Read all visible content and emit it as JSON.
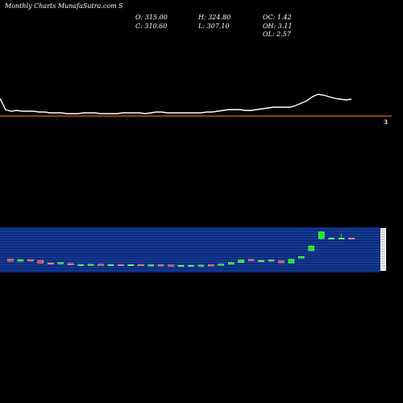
{
  "header": {
    "title": "Monthly Charts MunafaSutra.com",
    "symbol": "S"
  },
  "ohlc": {
    "open": "O: 315.00",
    "high": "H: 324.80",
    "oc": "OC: 1.42",
    "close": "C: 310.60",
    "low": "L: 307.10",
    "oh": "OH: 3.11",
    "ol": "OL: 2.57"
  },
  "price_axis": {
    "label": "3"
  },
  "colors": {
    "background": "#000000",
    "line": "#ffffff",
    "price_marker": "#e06020",
    "band": "#0a2a7a",
    "band_stripe": "#2a56b8",
    "bullish": "#00ff00",
    "bearish": "#ff3333",
    "neutral": "#ffffff"
  },
  "chart_data": [
    {
      "type": "line",
      "series": [
        {
          "values": [
            122,
            136,
            138,
            137,
            138,
            138,
            138,
            139,
            139,
            140,
            140,
            140,
            141,
            141,
            141,
            140,
            140,
            140,
            141,
            141,
            141,
            141,
            140,
            140,
            140,
            140,
            141,
            140,
            139,
            139,
            140,
            140,
            140,
            140,
            140,
            140,
            140,
            139,
            139,
            138,
            137,
            136,
            136,
            136,
            137,
            137,
            136,
            135,
            134,
            133,
            133,
            133,
            133,
            131,
            128,
            125,
            120,
            117,
            118,
            120,
            122,
            123,
            124,
            123
          ]
        }
      ],
      "price_level": 3
    },
    {
      "type": "candlestick",
      "candles": [
        {
          "o": 0.75,
          "c": 0.62,
          "h": 0.78,
          "l": 0.6
        },
        {
          "o": 0.62,
          "c": 0.72,
          "h": 0.74,
          "l": 0.56
        },
        {
          "o": 0.72,
          "c": 0.66,
          "h": 0.76,
          "l": 0.62
        },
        {
          "o": 0.66,
          "c": 0.5,
          "h": 0.68,
          "l": 0.48
        },
        {
          "o": 0.51,
          "c": 0.49,
          "h": 0.54,
          "l": 0.45
        },
        {
          "o": 0.49,
          "c": 0.53,
          "h": 0.56,
          "l": 0.46
        },
        {
          "o": 0.47,
          "c": 0.38,
          "h": 0.49,
          "l": 0.36
        },
        {
          "o": 0.38,
          "c": 0.41,
          "h": 0.43,
          "l": 0.36
        },
        {
          "o": 0.37,
          "c": 0.42,
          "h": 0.44,
          "l": 0.36
        },
        {
          "o": 0.42,
          "c": 0.39,
          "h": 0.46,
          "l": 0.37
        },
        {
          "o": 0.39,
          "c": 0.41,
          "h": 0.44,
          "l": 0.37
        },
        {
          "o": 0.41,
          "c": 0.37,
          "h": 0.42,
          "l": 0.36
        },
        {
          "o": 0.35,
          "c": 0.4,
          "h": 0.42,
          "l": 0.34
        },
        {
          "o": 0.41,
          "c": 0.36,
          "h": 0.42,
          "l": 0.35
        },
        {
          "o": 0.35,
          "c": 0.39,
          "h": 0.4,
          "l": 0.34
        },
        {
          "o": 0.39,
          "c": 0.38,
          "h": 0.41,
          "l": 0.37
        },
        {
          "o": 0.38,
          "c": 0.36,
          "h": 0.39,
          "l": 0.34
        },
        {
          "o": 0.34,
          "c": 0.36,
          "h": 0.38,
          "l": 0.33
        },
        {
          "o": 0.35,
          "c": 0.36,
          "h": 0.37,
          "l": 0.34
        },
        {
          "o": 0.36,
          "c": 0.37,
          "h": 0.38,
          "l": 0.35
        },
        {
          "o": 0.39,
          "c": 0.36,
          "h": 0.4,
          "l": 0.35
        },
        {
          "o": 0.36,
          "c": 0.43,
          "h": 0.5,
          "l": 0.35
        },
        {
          "o": 0.43,
          "c": 0.53,
          "h": 0.6,
          "l": 0.42
        },
        {
          "o": 0.53,
          "c": 0.7,
          "h": 0.72,
          "l": 0.52
        },
        {
          "o": 0.73,
          "c": 0.65,
          "h": 0.75,
          "l": 0.63
        },
        {
          "o": 0.65,
          "c": 0.67,
          "h": 0.72,
          "l": 0.63
        },
        {
          "o": 0.63,
          "c": 0.7,
          "h": 0.72,
          "l": 0.6
        },
        {
          "o": 0.64,
          "c": 0.52,
          "h": 0.65,
          "l": 0.5
        },
        {
          "o": 0.5,
          "c": 0.75,
          "h": 0.76,
          "l": 0.49
        },
        {
          "o": 0.82,
          "c": 0.92,
          "h": 0.95,
          "l": 0.8
        },
        {
          "o": 1.3,
          "c": 1.6,
          "h": 1.65,
          "l": 1.28
        },
        {
          "o": 2.08,
          "c": 2.5,
          "h": 2.55,
          "l": 2.0
        },
        {
          "o": 2.06,
          "c": 2.12,
          "h": 2.16,
          "l": 2.03
        },
        {
          "o": 2.1,
          "c": 2.12,
          "h": 2.4,
          "l": 2.07
        },
        {
          "o": 2.12,
          "c": 2.06,
          "h": 2.13,
          "l": 2.03
        }
      ],
      "ylim": [
        0,
        2.7
      ]
    }
  ]
}
